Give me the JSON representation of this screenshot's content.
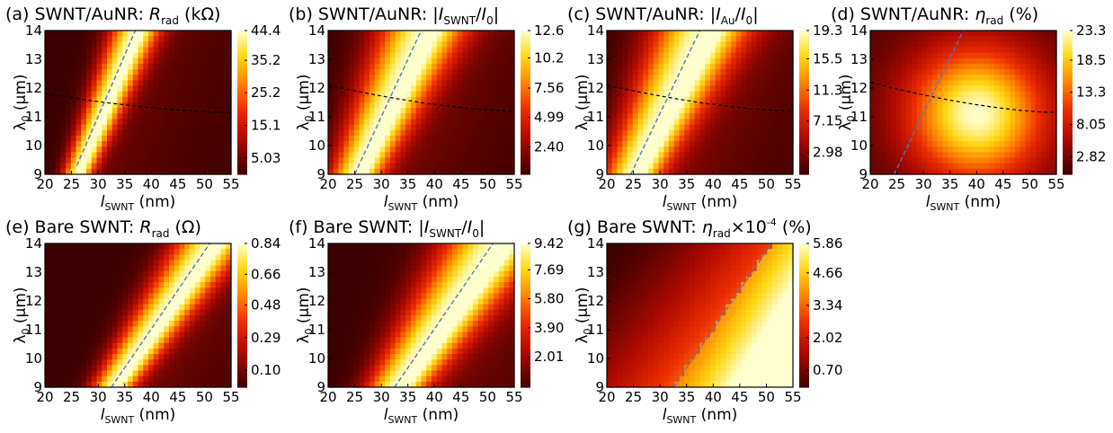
{
  "chart_data": [
    {
      "type": "heatmap",
      "title": {
        "prefix": "(a) SWNT/AuNR: ",
        "sym": "R",
        "sub": "rad",
        "suffix": " (kΩ)"
      },
      "xlabel": {
        "sym": "l",
        "sub": "SWNT",
        "suffix": " (nm)"
      },
      "ylabel": {
        "sym": "λ",
        "sub": "0",
        "suffix": " (μm)"
      },
      "xlim": [
        20,
        55
      ],
      "ylim": [
        9,
        14
      ],
      "xticks": [
        "20",
        "25",
        "30",
        "35",
        "40",
        "45",
        "50",
        "55"
      ],
      "yticks": [
        "9",
        "10",
        "11",
        "12",
        "13",
        "14"
      ],
      "colorbar": {
        "min": 0,
        "max": 44.4,
        "ticks": [
          5.03,
          15.1,
          25.2,
          35.2,
          44.4
        ],
        "labels": [
          "5.03",
          "15.1",
          "25.2",
          "35.2",
          "44.4"
        ]
      },
      "field": {
        "kind": "ridge",
        "x0": 26,
        "x1": 37,
        "width": 2.2,
        "spread": 0.15
      },
      "dashed_blue": {
        "x": [
          26,
          37
        ],
        "y": [
          9.3,
          14
        ]
      },
      "dashed_black": {
        "x": [
          20,
          55
        ],
        "y": [
          11.8,
          11.15
        ]
      }
    },
    {
      "type": "heatmap",
      "title": {
        "prefix": "(b) SWNT/AuNR: |",
        "sym": "I",
        "sub": "SWNT",
        "mid": "/",
        "sym2": "I",
        "sub2": "0",
        "suffix": "|"
      },
      "xlabel": {
        "sym": "l",
        "sub": "SWNT",
        "suffix": " (nm)"
      },
      "ylabel": {
        "sym": "λ",
        "sub": "0",
        "suffix": " (μm)"
      },
      "xlim": [
        20,
        55
      ],
      "ylim": [
        9,
        14
      ],
      "xticks": [
        "20",
        "25",
        "30",
        "35",
        "40",
        "45",
        "50",
        "55"
      ],
      "yticks": [
        "9",
        "10",
        "11",
        "12",
        "13",
        "14"
      ],
      "colorbar": {
        "min": 0,
        "max": 12.6,
        "ticks": [
          2.4,
          4.99,
          7.56,
          10.2,
          12.6
        ],
        "labels": [
          "2.40",
          "4.99",
          "7.56",
          "10.2",
          "12.6"
        ]
      },
      "field": {
        "kind": "ridge",
        "x0": 25,
        "x1": 37.5,
        "width": 3.8,
        "spread": 0.25
      },
      "dashed_blue": {
        "x": [
          25,
          37.5
        ],
        "y": [
          9,
          14
        ]
      },
      "dashed_black": {
        "x": [
          20,
          55
        ],
        "y": [
          12.1,
          11.2
        ]
      }
    },
    {
      "type": "heatmap",
      "title": {
        "prefix": "(c) SWNT/AuNR: |",
        "sym": "I",
        "sub": "Au",
        "mid": "/",
        "sym2": "I",
        "sub2": "0",
        "suffix": "|"
      },
      "xlabel": {
        "sym": "l",
        "sub": "SWNT",
        "suffix": " (nm)"
      },
      "ylabel": {
        "sym": "λ",
        "sub": "0",
        "suffix": " (μm)"
      },
      "xlim": [
        20,
        55
      ],
      "ylim": [
        9,
        14
      ],
      "xticks": [
        "20",
        "25",
        "30",
        "35",
        "40",
        "45",
        "50",
        "55"
      ],
      "yticks": [
        "9",
        "10",
        "11",
        "12",
        "13",
        "14"
      ],
      "colorbar": {
        "min": 0,
        "max": 19.3,
        "ticks": [
          2.98,
          7.15,
          11.3,
          15.5,
          19.3
        ],
        "labels": [
          "2.98",
          "7.15",
          "11.3",
          "15.5",
          "19.3"
        ]
      },
      "field": {
        "kind": "ridge",
        "x0": 24.5,
        "x1": 37.5,
        "width": 4.2,
        "spread": 0.3
      },
      "dashed_blue": {
        "x": [
          24.5,
          37.5
        ],
        "y": [
          9,
          14
        ]
      },
      "dashed_black": {
        "x": [
          20,
          55
        ],
        "y": [
          12.1,
          11.2
        ]
      }
    },
    {
      "type": "heatmap",
      "title": {
        "prefix": "(d) SWNT/AuNR: ",
        "sym": "η",
        "sub": "rad",
        "suffix": " (%)"
      },
      "xlabel": {
        "sym": "l",
        "sub": "SWNT",
        "suffix": " (nm)"
      },
      "ylabel": {
        "sym": "λ",
        "sub": "0",
        "suffix": " (μm)"
      },
      "xlim": [
        20,
        55
      ],
      "ylim": [
        9,
        14
      ],
      "xticks": [
        "20",
        "25",
        "30",
        "35",
        "40",
        "45",
        "50",
        "55"
      ],
      "yticks": [
        "9",
        "10",
        "11",
        "12",
        "13",
        "14"
      ],
      "colorbar": {
        "min": 0,
        "max": 23.3,
        "ticks": [
          2.82,
          8.05,
          13.3,
          18.5,
          23.3
        ],
        "labels": [
          "2.82",
          "8.05",
          "13.3",
          "18.5",
          "23.3"
        ]
      },
      "field": {
        "kind": "blob",
        "cx": 40,
        "cy": 11.1
      },
      "dashed_blue": {
        "x": [
          24.5,
          37.5
        ],
        "y": [
          9,
          14
        ]
      },
      "dashed_black": {
        "x": [
          20,
          55
        ],
        "y": [
          12.2,
          11.15
        ]
      }
    },
    {
      "type": "heatmap",
      "title": {
        "prefix": "(e) Bare SWNT: ",
        "sym": "R",
        "sub": "rad",
        "suffix": " (Ω)"
      },
      "xlabel": {
        "sym": "l",
        "sub": "SWNT",
        "suffix": " (nm)"
      },
      "ylabel": {
        "sym": "λ",
        "sub": "0",
        "suffix": " (μm)"
      },
      "xlim": [
        20,
        55
      ],
      "ylim": [
        9,
        14
      ],
      "xticks": [
        "20",
        "25",
        "30",
        "35",
        "40",
        "45",
        "50",
        "55"
      ],
      "yticks": [
        "9",
        "10",
        "11",
        "12",
        "13",
        "14"
      ],
      "colorbar": {
        "min": 0,
        "max": 0.84,
        "ticks": [
          0.1,
          0.29,
          0.48,
          0.66,
          0.84
        ],
        "labels": [
          "0.10",
          "0.29",
          "0.48",
          "0.66",
          "0.84"
        ]
      },
      "field": {
        "kind": "ridge",
        "x0": 32.5,
        "x1": 51,
        "width": 3.2,
        "spread": 0.2
      },
      "dashed_blue": {
        "x": [
          32.5,
          51
        ],
        "y": [
          9,
          14
        ]
      }
    },
    {
      "type": "heatmap",
      "title": {
        "prefix": "(f) Bare SWNT: |",
        "sym": "I",
        "sub": "SWNT",
        "mid": "/",
        "sym2": "I",
        "sub2": "0",
        "suffix": "|"
      },
      "xlabel": {
        "sym": "l",
        "sub": "SWNT",
        "suffix": " (nm)"
      },
      "ylabel": {
        "sym": "λ",
        "sub": "0",
        "suffix": " (μm)"
      },
      "xlim": [
        20,
        55
      ],
      "ylim": [
        9,
        14
      ],
      "xticks": [
        "20",
        "25",
        "30",
        "35",
        "40",
        "45",
        "50",
        "55"
      ],
      "yticks": [
        "9",
        "10",
        "11",
        "12",
        "13",
        "14"
      ],
      "colorbar": {
        "min": 0,
        "max": 9.42,
        "ticks": [
          2.01,
          3.9,
          5.8,
          7.69,
          9.42
        ],
        "labels": [
          "2.01",
          "3.90",
          "5.80",
          "7.69",
          "9.42"
        ]
      },
      "field": {
        "kind": "ridge",
        "x0": 32.5,
        "x1": 51,
        "width": 4.5,
        "spread": 0.28
      },
      "dashed_blue": {
        "x": [
          32.5,
          51
        ],
        "y": [
          9,
          14
        ]
      }
    },
    {
      "type": "heatmap",
      "title": {
        "prefix": "(g) Bare SWNT: ",
        "sym": "η",
        "sub": "rad",
        "suffix": "×10",
        "sup": "-4",
        "suffix2": " (%)"
      },
      "xlabel": {
        "sym": "l",
        "sub": "SWNT",
        "suffix": " (nm)"
      },
      "ylabel": {
        "sym": "λ",
        "sub": "0",
        "suffix": " (μm)"
      },
      "xlim": [
        20,
        55
      ],
      "ylim": [
        9,
        14
      ],
      "xticks": [
        "20",
        "25",
        "30",
        "35",
        "40",
        "45",
        "50",
        "55"
      ],
      "yticks": [
        "9",
        "10",
        "11",
        "12",
        "13",
        "14"
      ],
      "colorbar": {
        "min": 0,
        "max": 5.86,
        "ticks": [
          0.7,
          2.02,
          3.34,
          4.66,
          5.86
        ],
        "labels": [
          "0.70",
          "2.02",
          "3.34",
          "4.66",
          "5.86"
        ]
      },
      "field": {
        "kind": "corner"
      },
      "dashed_blue": {
        "x": [
          32.5,
          51
        ],
        "y": [
          9,
          14
        ]
      }
    }
  ]
}
